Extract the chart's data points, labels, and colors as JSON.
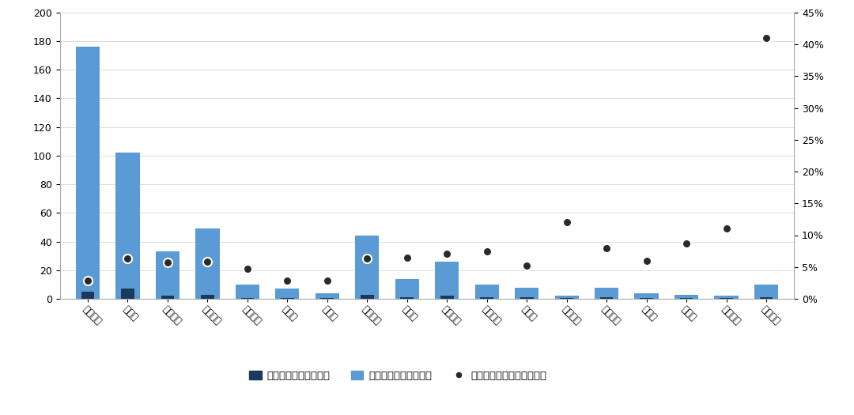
{
  "categories": [
    "贵州茅台",
    "五粮液",
    "泸州老窖",
    "山西汾酒",
    "舍得酒业",
    "水井坊",
    "酒鬼酒",
    "洋河股份",
    "今世缘",
    "古井贡酒",
    "迎驾贡酒",
    "口子窖",
    "金种子酒",
    "老白干酒",
    "金徽酒",
    "伊力特",
    "天佑德酒",
    "顺鑫农业"
  ],
  "vol_tax": [
    5,
    7,
    2,
    3,
    0.5,
    0.5,
    0.5,
    3,
    1,
    2,
    1,
    1,
    0.5,
    1,
    0.5,
    0.5,
    0.5,
    1
  ],
  "val_tax": [
    176,
    102,
    33,
    49,
    10,
    7,
    4,
    44,
    14,
    26,
    10,
    8,
    2,
    8,
    4,
    3,
    2,
    10
  ],
  "ratio": [
    0.028,
    0.063,
    0.057,
    0.058,
    0.047,
    0.028,
    0.028,
    0.063,
    0.065,
    0.071,
    0.075,
    0.052,
    0.12,
    0.08,
    0.06,
    0.087,
    0.11,
    0.41
  ],
  "vol_tax_color": "#1a3a5c",
  "val_tax_color": "#5b9bd5",
  "dot_color": "#1a1a1a",
  "dot_facecolor": "#2a2a2a",
  "dot_edgecolor": "#ffffff",
  "ylim_left": [
    0,
    200
  ],
  "ylim_right": [
    0,
    0.45
  ],
  "yticks_left": [
    0,
    20,
    40,
    60,
    80,
    100,
    120,
    140,
    160,
    180,
    200
  ],
  "yticks_right": [
    0.0,
    0.05,
    0.1,
    0.15,
    0.2,
    0.25,
    0.3,
    0.35,
    0.4,
    0.45
  ],
  "ytick_right_labels": [
    "0%",
    "5%",
    "10%",
    "15%",
    "20%",
    "25%",
    "30%",
    "35%",
    "40%",
    "45%"
  ],
  "legend_vol": "从量消费税负（亿元）",
  "legend_val": "从价消费税负（亿元）",
  "legend_ratio": "从量消费税负占比（右轴）",
  "bg_color": "#ffffff",
  "bar_width": 0.6,
  "label_rotation": -45,
  "label_ha": "left",
  "label_fontsize": 8.5,
  "tick_fontsize": 9
}
